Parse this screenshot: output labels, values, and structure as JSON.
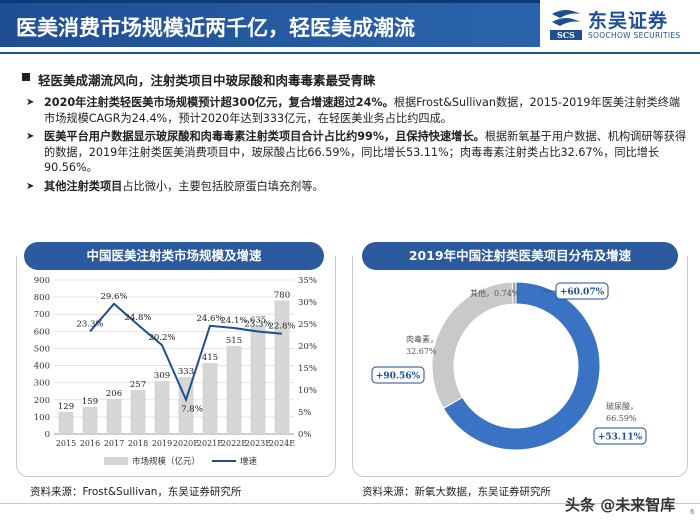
{
  "header": {
    "title": "医美消费市场规模近两千亿，轻医美成潮流",
    "logo_cn": "东吴证券",
    "logo_en": "SOOCHOW SECURITIES",
    "logo_mark": "SCS"
  },
  "bullets": {
    "main": "轻医美成潮流风向，注射类项目中玻尿酸和肉毒毒素最受青睐",
    "items": [
      {
        "bold": "2020年注射类轻医美市场规模预计超300亿元，复合增速超过24%。",
        "text": "根据Frost&Sullivan数据，2015-2019年医美注射类终端市场规模CAGR为24.4%，预计2020年达到333亿元，在轻医美业务占比约四成。"
      },
      {
        "bold": "医美平台用户数据显示玻尿酸和肉毒毒素注射类项目合计占比约99%，且保持快速增长。",
        "text": "根据新氧基于用户数据、机构调研等获得的数据，2019年注射类医美消费项目中，玻尿酸占比66.59%，同比增长53.11%；肉毒毒素注射类占比32.67%，同比增长90.56%。"
      },
      {
        "bold": "其他注射类项目",
        "text": "占比微小，主要包括胶原蛋白填充剂等。"
      }
    ]
  },
  "left_panel": {
    "title": "中国医美注射类市场规模及增速",
    "source": "资料来源：Frost&Sullivan，东吴证券研究所"
  },
  "right_panel": {
    "title": "2019年中国注射类医美项目分布及增速",
    "source": "资料来源：新氧大数据，东吴证券研究所"
  },
  "chart_data": [
    {
      "type": "bar",
      "categories": [
        "2015",
        "2016",
        "2017",
        "2018",
        "2019",
        "2020E",
        "2021E",
        "2022E",
        "2023E",
        "2024E"
      ],
      "series": [
        {
          "name": "市场规模（亿元）",
          "type": "bar",
          "axis": "left",
          "values": [
            129,
            159,
            206,
            257,
            309,
            333,
            415,
            515,
            635,
            780
          ]
        },
        {
          "name": "增速",
          "type": "line",
          "axis": "right",
          "values": [
            null,
            23.3,
            29.6,
            24.8,
            20.2,
            7.8,
            24.6,
            24.1,
            23.3,
            22.8
          ],
          "labels": [
            "",
            "23.3%",
            "29.6%",
            "24.8%",
            "20.2%",
            "7.8%",
            "24.6%",
            "24.1%",
            "23.3%",
            "22.8%"
          ]
        }
      ],
      "ylim_left": [
        0,
        900
      ],
      "yticks_left": [
        "0",
        "100",
        "200",
        "300",
        "400",
        "500",
        "600",
        "700",
        "800",
        "900"
      ],
      "ylim_right": [
        0,
        35
      ],
      "yticks_right": [
        "0%",
        "5%",
        "10%",
        "15%",
        "20%",
        "25%",
        "30%",
        "35%"
      ],
      "legend": "bottom",
      "colors": {
        "bar": "#d6d6d6",
        "line": "#1f4e93"
      }
    },
    {
      "type": "pie",
      "donut": true,
      "slices": [
        {
          "name": "玻尿酸",
          "value": 66.59,
          "label": "玻尿酸，66.59%",
          "growth": "+53.11%",
          "color": "#3a73c4"
        },
        {
          "name": "肉毒素",
          "value": 32.67,
          "label": "肉毒素，32.67%",
          "growth": "+90.56%",
          "color": "#c9c9c9"
        },
        {
          "name": "其他",
          "value": 0.74,
          "label": "其他，0.74%",
          "growth": "+60.07%",
          "color": "#a9a9a9"
        }
      ]
    }
  ],
  "watermark": "头条 @未来智库",
  "page_number": "6"
}
